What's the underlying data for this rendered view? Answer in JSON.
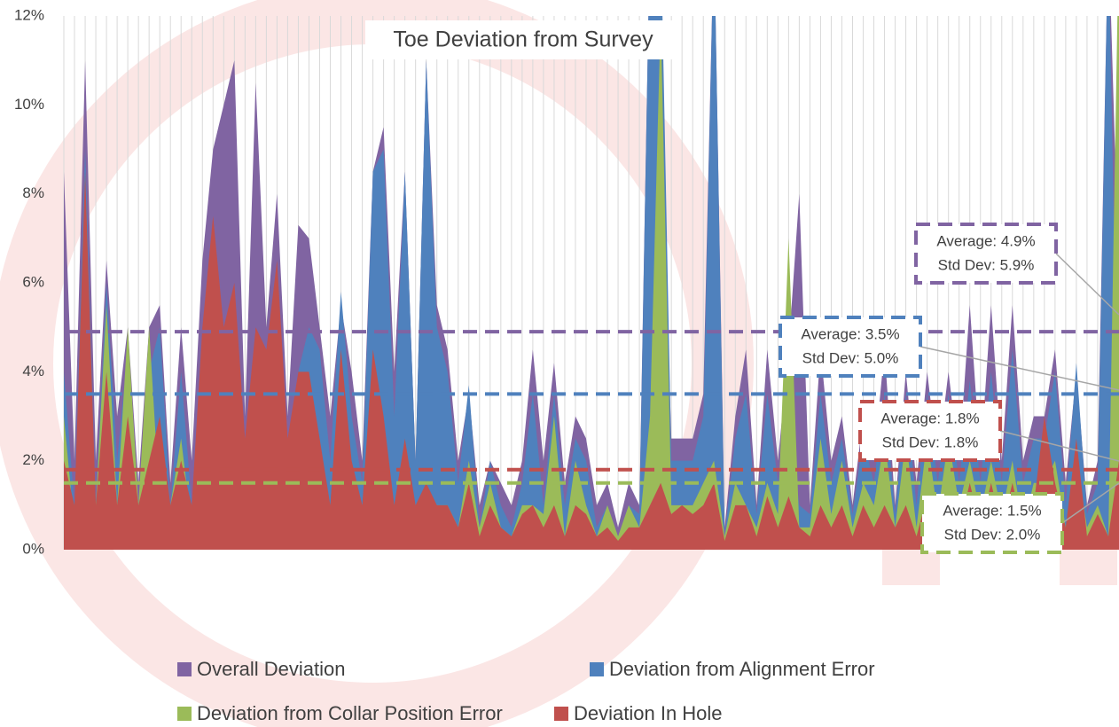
{
  "chart_data": {
    "type": "area",
    "title": "Toe Deviation from Survey",
    "categories": [
      null,
      null,
      null,
      null,
      null,
      null,
      null,
      null,
      null,
      null,
      null,
      null,
      null,
      null,
      null,
      null,
      null,
      null,
      null,
      null,
      null,
      null,
      null,
      null,
      null,
      null,
      null,
      null,
      null,
      null,
      null,
      null,
      null,
      null,
      null,
      null,
      null,
      null,
      null,
      null,
      null,
      null,
      null,
      null,
      null,
      null,
      null,
      null,
      null,
      null,
      null,
      null,
      null,
      null,
      null,
      null,
      null,
      null,
      null,
      null,
      null,
      null,
      null,
      null,
      null,
      null,
      null,
      null,
      null,
      null,
      null,
      null,
      null,
      null,
      null,
      null,
      null,
      null,
      null,
      null,
      null,
      null,
      null,
      null,
      null,
      null,
      null,
      null,
      null,
      null,
      null,
      null,
      null,
      null,
      null,
      null,
      null,
      null,
      null,
      null
    ],
    "series": [
      {
        "name": "Overall Deviation",
        "color": "#8064a2",
        "values": [
          8.5,
          2,
          11,
          2,
          6.5,
          3,
          5,
          1.5,
          5,
          5.5,
          1.5,
          5,
          2,
          6.5,
          9,
          10,
          11,
          3,
          10.5,
          5,
          8,
          3,
          7.3,
          7,
          5,
          3,
          5.5,
          4,
          2,
          8.5,
          9.5,
          4,
          8.5,
          2,
          11,
          5.5,
          4.5,
          2,
          3.5,
          1,
          2,
          1.5,
          1,
          2,
          4.5,
          2,
          4.2,
          1.5,
          3,
          2.5,
          1,
          1.5,
          0.5,
          1.5,
          1,
          14,
          10,
          2.5,
          2.5,
          2.5,
          3.5,
          14,
          0.5,
          3,
          4.5,
          1,
          4.5,
          2,
          4.5,
          8,
          1,
          4.5,
          2,
          3,
          1,
          3,
          2,
          4.5,
          1,
          4,
          1.5,
          4,
          2,
          4,
          2,
          5.5,
          2,
          5.5,
          2,
          5.5,
          2,
          3,
          3,
          4.5,
          1.5,
          4,
          1,
          2,
          14,
          6
        ]
      },
      {
        "name": "Deviation from Alignment Error",
        "color": "#4f81bd",
        "values": [
          4,
          1,
          9,
          1,
          6,
          2,
          4.5,
          1,
          4,
          5,
          1,
          4,
          1,
          2,
          2,
          3,
          3,
          1.5,
          3,
          1,
          4,
          2,
          4,
          5,
          4.5,
          2,
          5.8,
          3,
          1.5,
          8.5,
          9,
          3,
          8.5,
          2,
          11,
          5,
          4,
          1.5,
          3.7,
          0.5,
          2,
          1,
          0.5,
          1.5,
          3.5,
          1,
          3.5,
          1,
          2.5,
          2,
          0.5,
          1,
          0.3,
          1,
          0.8,
          14,
          14,
          2,
          2,
          2,
          3,
          14,
          0.3,
          2.5,
          3.5,
          0.8,
          3.5,
          1.5,
          3,
          1,
          0.8,
          3.5,
          1.5,
          2.5,
          0.8,
          2.5,
          1.5,
          3.5,
          0.8,
          3.5,
          1,
          3.5,
          1.5,
          3.5,
          1.5,
          3.8,
          1.5,
          4,
          1.5,
          4.5,
          1.5,
          2.5,
          2.5,
          4,
          1,
          4.2,
          0.8,
          1.5,
          14,
          1
        ]
      },
      {
        "name": "Deviation from Collar Position Error",
        "color": "#9bbb59",
        "values": [
          3,
          0.5,
          4,
          1,
          5.5,
          1,
          5,
          1,
          5,
          1,
          1,
          2.5,
          0.5,
          2.5,
          1,
          1.5,
          1,
          1,
          1,
          1,
          1,
          1,
          1,
          1.5,
          1,
          1,
          1,
          1,
          1,
          1,
          1.5,
          1,
          1,
          1,
          1,
          1,
          1,
          0.5,
          2,
          0.5,
          1.5,
          0.5,
          0.3,
          1,
          1,
          0.8,
          3,
          0.3,
          2,
          1,
          0.3,
          1,
          0.3,
          1,
          0.5,
          3,
          12,
          1,
          1,
          1,
          1.5,
          2,
          0.3,
          1.5,
          1,
          0.5,
          1.5,
          0.8,
          7,
          0.5,
          0.5,
          2.5,
          0.8,
          2,
          0.5,
          1.5,
          1,
          2.5,
          0.5,
          2.5,
          0.5,
          2.5,
          0.8,
          2.5,
          1,
          2,
          0.8,
          2,
          0.8,
          2,
          0.5,
          1.5,
          1.5,
          2,
          0.5,
          2,
          0.5,
          1,
          0.3,
          14
        ]
      },
      {
        "name": "Deviation In Hole",
        "color": "#c0504d",
        "values": [
          2,
          1,
          8.5,
          1,
          4,
          1,
          3,
          1,
          2,
          3,
          1,
          2,
          1,
          5,
          7.5,
          5,
          6,
          2.5,
          5,
          4.5,
          6.5,
          2.5,
          4,
          4,
          2.5,
          1,
          4.5,
          2,
          1,
          4.5,
          3,
          1,
          2.5,
          1,
          1.5,
          1,
          1,
          0.5,
          1.5,
          0.3,
          1,
          0.5,
          0.3,
          0.8,
          1,
          0.5,
          1,
          0.3,
          1,
          0.8,
          0.3,
          0.5,
          0.2,
          0.5,
          0.5,
          1,
          1.5,
          0.8,
          1,
          0.8,
          1,
          1.5,
          0.2,
          1,
          1,
          0.3,
          1.2,
          0.5,
          1.2,
          0.5,
          0.3,
          1,
          0.5,
          1,
          0.3,
          1,
          0.5,
          1,
          0.5,
          1,
          0.3,
          1.2,
          0.5,
          1.2,
          0.5,
          1.5,
          0.5,
          1.5,
          0.5,
          1.5,
          0.5,
          1,
          3,
          1.5,
          0.5,
          2.5,
          0.3,
          0.8,
          0.3,
          2
        ]
      }
    ],
    "reference_lines": [
      {
        "value": 4.9,
        "color": "#8064a2",
        "labels": [
          "Average: 4.9%",
          "Std Dev: 5.9%"
        ]
      },
      {
        "value": 3.5,
        "color": "#4f81bd",
        "labels": [
          "Average: 3.5%",
          "Std Dev: 5.0%"
        ]
      },
      {
        "value": 1.8,
        "color": "#c0504d",
        "labels": [
          "Average: 1.8%",
          "Std Dev: 1.8%"
        ]
      },
      {
        "value": 1.5,
        "color": "#9bbb59",
        "labels": [
          "Average: 1.5%",
          "Std Dev: 2.0%"
        ]
      }
    ],
    "ylim": [
      0,
      12
    ],
    "yticks": [
      {
        "value": 0,
        "label": "0%"
      },
      {
        "value": 2,
        "label": "2%"
      },
      {
        "value": 4,
        "label": "4%"
      },
      {
        "value": 6,
        "label": "6%"
      },
      {
        "value": 8,
        "label": "8%"
      },
      {
        "value": 10,
        "label": "10%"
      },
      {
        "value": 12,
        "label": "12%"
      }
    ],
    "grid": true
  }
}
